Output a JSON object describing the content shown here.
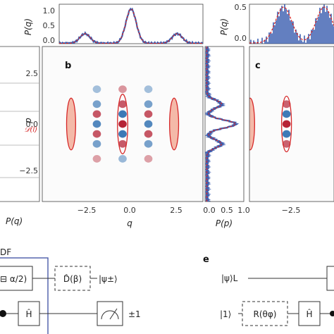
{
  "panels": {
    "b": "b",
    "c": "c",
    "e": "e"
  },
  "axis_labels": {
    "Pq": "P(q)",
    "q": "q",
    "p": "p",
    "Pp": "P(p)",
    "Pq_left": "P(q)"
  },
  "ticks": {
    "q_axis": [
      "−2.5",
      "0.0",
      "2.5"
    ],
    "q_axis_c": [
      "−2.5"
    ],
    "p_axis": [
      "2.5",
      "0.0",
      "−2.5"
    ],
    "Pp_axis": [
      "0.0",
      "0.5",
      "1.0"
    ],
    "Pq_b": [
      "1.0",
      "0.5",
      "0.0"
    ],
    "Pq_c": [
      "0.5",
      "0.0"
    ]
  },
  "left_fragment": {
    "label": "𝒟(l)",
    "df": "DF"
  },
  "circuit_d": {
    "gate_alpha": "⊟ α/2)",
    "displacement": "D̂(β)",
    "output_state": "|ψ±⟩",
    "hadamard": "Ĥ",
    "result": "±1"
  },
  "circuit_e": {
    "input_top": "|ψ⟩L",
    "input_bottom": "|1⟩",
    "rotation": "R(θφ)",
    "hadamard": "Ĥ"
  },
  "colors": {
    "data": "#3c5fb0",
    "theory": "#d62728",
    "wigner_pos": "#b2182b",
    "wigner_neg": "#2166ac",
    "circuit_frame": "#4a5aa8"
  },
  "chart_data": [
    {
      "type": "line",
      "title": "",
      "xlabel": "",
      "ylabel": "P(q)",
      "xlim": [
        -3.9,
        3.9
      ],
      "ylim": [
        0,
        1.15
      ],
      "series": [
        {
          "x": [
            -2.5,
            0.0,
            2.5
          ],
          "y": [
            0.28,
            1.0,
            0.28
          ]
        }
      ]
    },
    {
      "type": "heatmap",
      "title": "",
      "xlabel": "q",
      "ylabel": "p",
      "xlim": [
        -3.9,
        3.9
      ],
      "ylim": [
        -3.9,
        3.9
      ],
      "x_ticks": [
        -2.5,
        0.0,
        2.5
      ],
      "y_ticks": [
        -2.5,
        0.0,
        2.5
      ],
      "gaussian_centers_q": [
        -2.5,
        2.5
      ],
      "interference_columns_q": [
        -1.25,
        0.0,
        1.25
      ]
    },
    {
      "type": "line",
      "title": "",
      "xlabel": "P(p)",
      "ylabel": "",
      "xlim": [
        0.0,
        1.0
      ],
      "ylim": [
        -3.9,
        3.9
      ],
      "series": [
        {
          "x": [
            0.42,
            0.82,
            0.42
          ],
          "y": [
            1.0,
            0.0,
            -1.0
          ]
        }
      ]
    },
    {
      "type": "line",
      "title": "",
      "xlabel": "",
      "ylabel": "",
      "xlim": [
        -3.9,
        3.9
      ],
      "ylim": [
        0,
        0.55
      ],
      "series": [
        {
          "x": [
            -1.25,
            0.0
          ],
          "y": [
            0.5,
            0.5
          ]
        }
      ]
    }
  ]
}
